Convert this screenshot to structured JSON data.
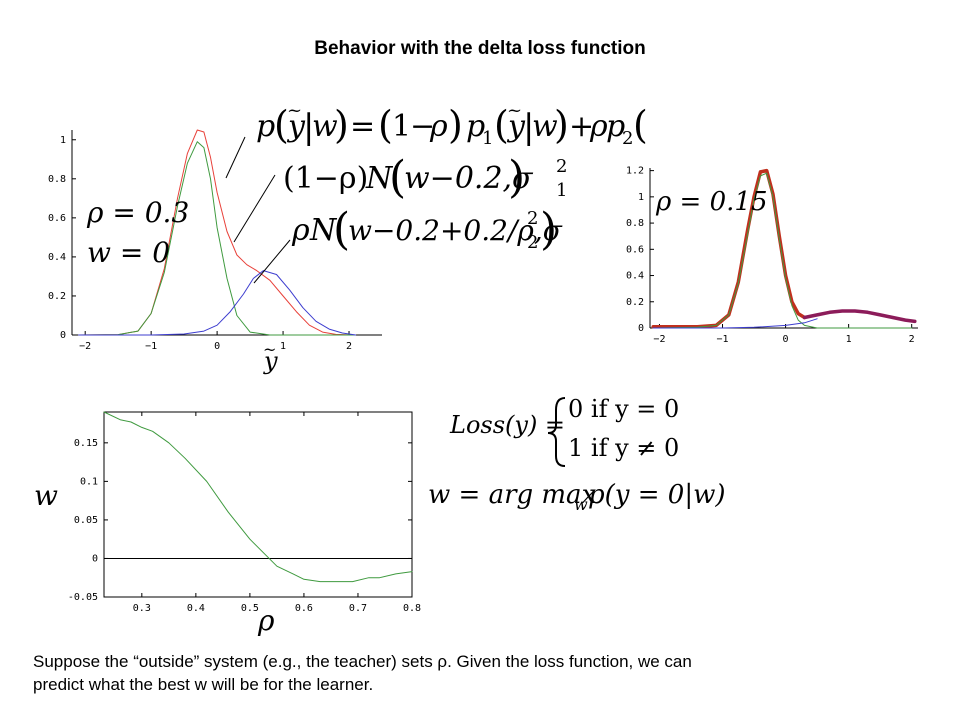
{
  "title": "Behavior with the delta loss function",
  "caption": {
    "line1": "Suppose the “outside” system (e.g., the teacher) sets ρ.  Given the loss function, we can",
    "line2": "predict what the best w will be for the learner."
  },
  "colors": {
    "red": "#e8413a",
    "green": "#3f9a3f",
    "blue": "#3d3dcf",
    "thick_red": "#c0301e",
    "thick_purple": "#8c1c5a"
  },
  "equations": {
    "mixture": {
      "p": "p",
      "y": "y",
      "w": "w",
      "one": "1",
      "rho": "ρ",
      "eq": "=",
      "minus": "−",
      "plus": "+",
      "bar": "|",
      "lp": "(",
      "rp": ")",
      "sub1": "1",
      "sub2": "2"
    },
    "comp1": {
      "lead": "(1−ρ)",
      "N": "N",
      "arg": "w−0.2,σ",
      "sub": "1",
      "sup": "2"
    },
    "comp2": {
      "lead": "ρ",
      "N": "N",
      "arg": "w−0.2+0.2/ρ,σ",
      "sub": "2",
      "sup": "2"
    },
    "rho1": "ρ = 0.3",
    "w0": "w = 0",
    "rho2": "ρ = 0.15",
    "loss_lhs": "Loss(y) =",
    "loss_case1": "0 if y = 0",
    "loss_case2": "1 if y ≠ 0",
    "argmax_lhs": "w = arg max",
    "argmax_sub": "w",
    "argmax_rhs": "p(y = 0|w)",
    "xlabel1": "y",
    "xlabel3": "ρ",
    "ylabel3": "w"
  },
  "chart_data": [
    {
      "type": "line",
      "title": "",
      "xlabel": "y",
      "ylabel": "",
      "xlim": [
        -2.2,
        2.5
      ],
      "ylim": [
        0,
        1.05
      ],
      "xticks": [
        "−2",
        "−1",
        "0",
        "1",
        "2"
      ],
      "xtick_values": [
        -2,
        -1,
        0,
        1,
        2
      ],
      "yticks": [
        "0",
        "0.2",
        "0.4",
        "0.6",
        "0.8",
        "1"
      ],
      "ytick_values": [
        0,
        0.2,
        0.4,
        0.6,
        0.8,
        1
      ],
      "series": [
        {
          "name": "",
          "color": "red",
          "x": [
            -2.1,
            -1.5,
            -1.2,
            -1.0,
            -0.8,
            -0.6,
            -0.45,
            -0.3,
            -0.2,
            -0.1,
            0.0,
            0.15,
            0.3,
            0.45,
            0.6,
            0.8,
            1.0,
            1.2,
            1.4,
            1.6,
            1.8,
            2.1
          ],
          "y": [
            0,
            0.002,
            0.02,
            0.11,
            0.34,
            0.7,
            0.93,
            1.05,
            1.04,
            0.91,
            0.73,
            0.53,
            0.41,
            0.36,
            0.33,
            0.28,
            0.2,
            0.12,
            0.05,
            0.015,
            0.003,
            0
          ]
        },
        {
          "name": "",
          "color": "green",
          "x": [
            -2.1,
            -1.5,
            -1.2,
            -1.0,
            -0.8,
            -0.6,
            -0.45,
            -0.3,
            -0.2,
            -0.1,
            0.0,
            0.15,
            0.3,
            0.5,
            0.8,
            1.2,
            1.6,
            2.1
          ],
          "y": [
            0,
            0.002,
            0.02,
            0.11,
            0.32,
            0.66,
            0.88,
            0.99,
            0.96,
            0.8,
            0.55,
            0.29,
            0.1,
            0.015,
            0,
            0,
            0,
            0
          ]
        },
        {
          "name": "",
          "color": "blue",
          "x": [
            -2.1,
            -1.0,
            -0.5,
            -0.2,
            0.0,
            0.2,
            0.4,
            0.55,
            0.7,
            0.9,
            1.1,
            1.3,
            1.5,
            1.7,
            1.9,
            2.1
          ],
          "y": [
            0,
            0,
            0.005,
            0.02,
            0.05,
            0.12,
            0.21,
            0.29,
            0.33,
            0.31,
            0.23,
            0.14,
            0.07,
            0.03,
            0.01,
            0
          ]
        }
      ]
    },
    {
      "type": "line",
      "title": "",
      "xlabel": "",
      "ylabel": "",
      "xlim": [
        -2.15,
        2.1
      ],
      "ylim": [
        0,
        1.22
      ],
      "xticks": [
        "−2",
        "−1",
        "0",
        "1",
        "2"
      ],
      "xtick_values": [
        -2,
        -1,
        0,
        1,
        2
      ],
      "yticks": [
        "0",
        "0.2",
        "0.4",
        "0.6",
        "0.8",
        "1",
        "1.2"
      ],
      "ytick_values": [
        0,
        0.2,
        0.4,
        0.6,
        0.8,
        1,
        1.2
      ],
      "series": [
        {
          "name": "",
          "color": "thick_red",
          "x": [
            -2.1,
            -1.4,
            -1.1,
            -0.9,
            -0.75,
            -0.6,
            -0.5,
            -0.4,
            -0.3,
            -0.2,
            -0.1,
            0.0,
            0.1,
            0.2,
            0.3
          ],
          "y": [
            0.01,
            0.01,
            0.02,
            0.1,
            0.35,
            0.75,
            1.0,
            1.19,
            1.2,
            1.02,
            0.7,
            0.4,
            0.2,
            0.11,
            0.08
          ]
        },
        {
          "name": "",
          "color": "green",
          "x": [
            -2.1,
            -1.4,
            -1.1,
            -0.9,
            -0.75,
            -0.6,
            -0.5,
            -0.4,
            -0.3,
            -0.2,
            -0.1,
            0.0,
            0.1,
            0.2,
            0.3,
            0.5,
            0.8,
            1.2,
            2.0
          ],
          "y": [
            0,
            0.005,
            0.02,
            0.1,
            0.34,
            0.72,
            0.98,
            1.16,
            1.18,
            1.0,
            0.68,
            0.38,
            0.17,
            0.06,
            0.02,
            0,
            0,
            0,
            0
          ]
        },
        {
          "name": "",
          "color": "blue",
          "x": [
            -2.1,
            -1.0,
            -0.5,
            0.0,
            0.3,
            0.5
          ],
          "y": [
            0,
            0,
            0.005,
            0.02,
            0.04,
            0.07
          ]
        },
        {
          "name": "",
          "color": "thick_purple",
          "x": [
            0.3,
            0.5,
            0.7,
            0.9,
            1.1,
            1.3,
            1.5,
            1.7,
            1.9,
            2.05
          ],
          "y": [
            0.08,
            0.1,
            0.12,
            0.13,
            0.13,
            0.12,
            0.1,
            0.08,
            0.06,
            0.05
          ]
        }
      ]
    },
    {
      "type": "line",
      "title": "",
      "xlabel": "ρ",
      "ylabel": "w",
      "xlim": [
        0.23,
        0.8
      ],
      "ylim": [
        -0.05,
        0.19
      ],
      "xticks": [
        "0.3",
        "0.4",
        "0.5",
        "0.6",
        "0.7",
        "0.8"
      ],
      "xtick_values": [
        0.3,
        0.4,
        0.5,
        0.6,
        0.7,
        0.8
      ],
      "yticks": [
        "-0.05",
        "0",
        "0.05",
        "0.1",
        "0.15"
      ],
      "ytick_values": [
        -0.05,
        0,
        0.05,
        0.1,
        0.15
      ],
      "series": [
        {
          "name": "",
          "color": "green",
          "x": [
            0.23,
            0.26,
            0.28,
            0.3,
            0.32,
            0.35,
            0.38,
            0.42,
            0.46,
            0.5,
            0.55,
            0.58,
            0.6,
            0.63,
            0.66,
            0.69,
            0.72,
            0.74,
            0.77,
            0.8
          ],
          "y": [
            0.19,
            0.18,
            0.177,
            0.17,
            0.165,
            0.15,
            0.13,
            0.1,
            0.06,
            0.025,
            -0.01,
            -0.02,
            -0.027,
            -0.03,
            -0.03,
            -0.03,
            -0.025,
            -0.025,
            -0.02,
            -0.017
          ]
        }
      ]
    }
  ]
}
